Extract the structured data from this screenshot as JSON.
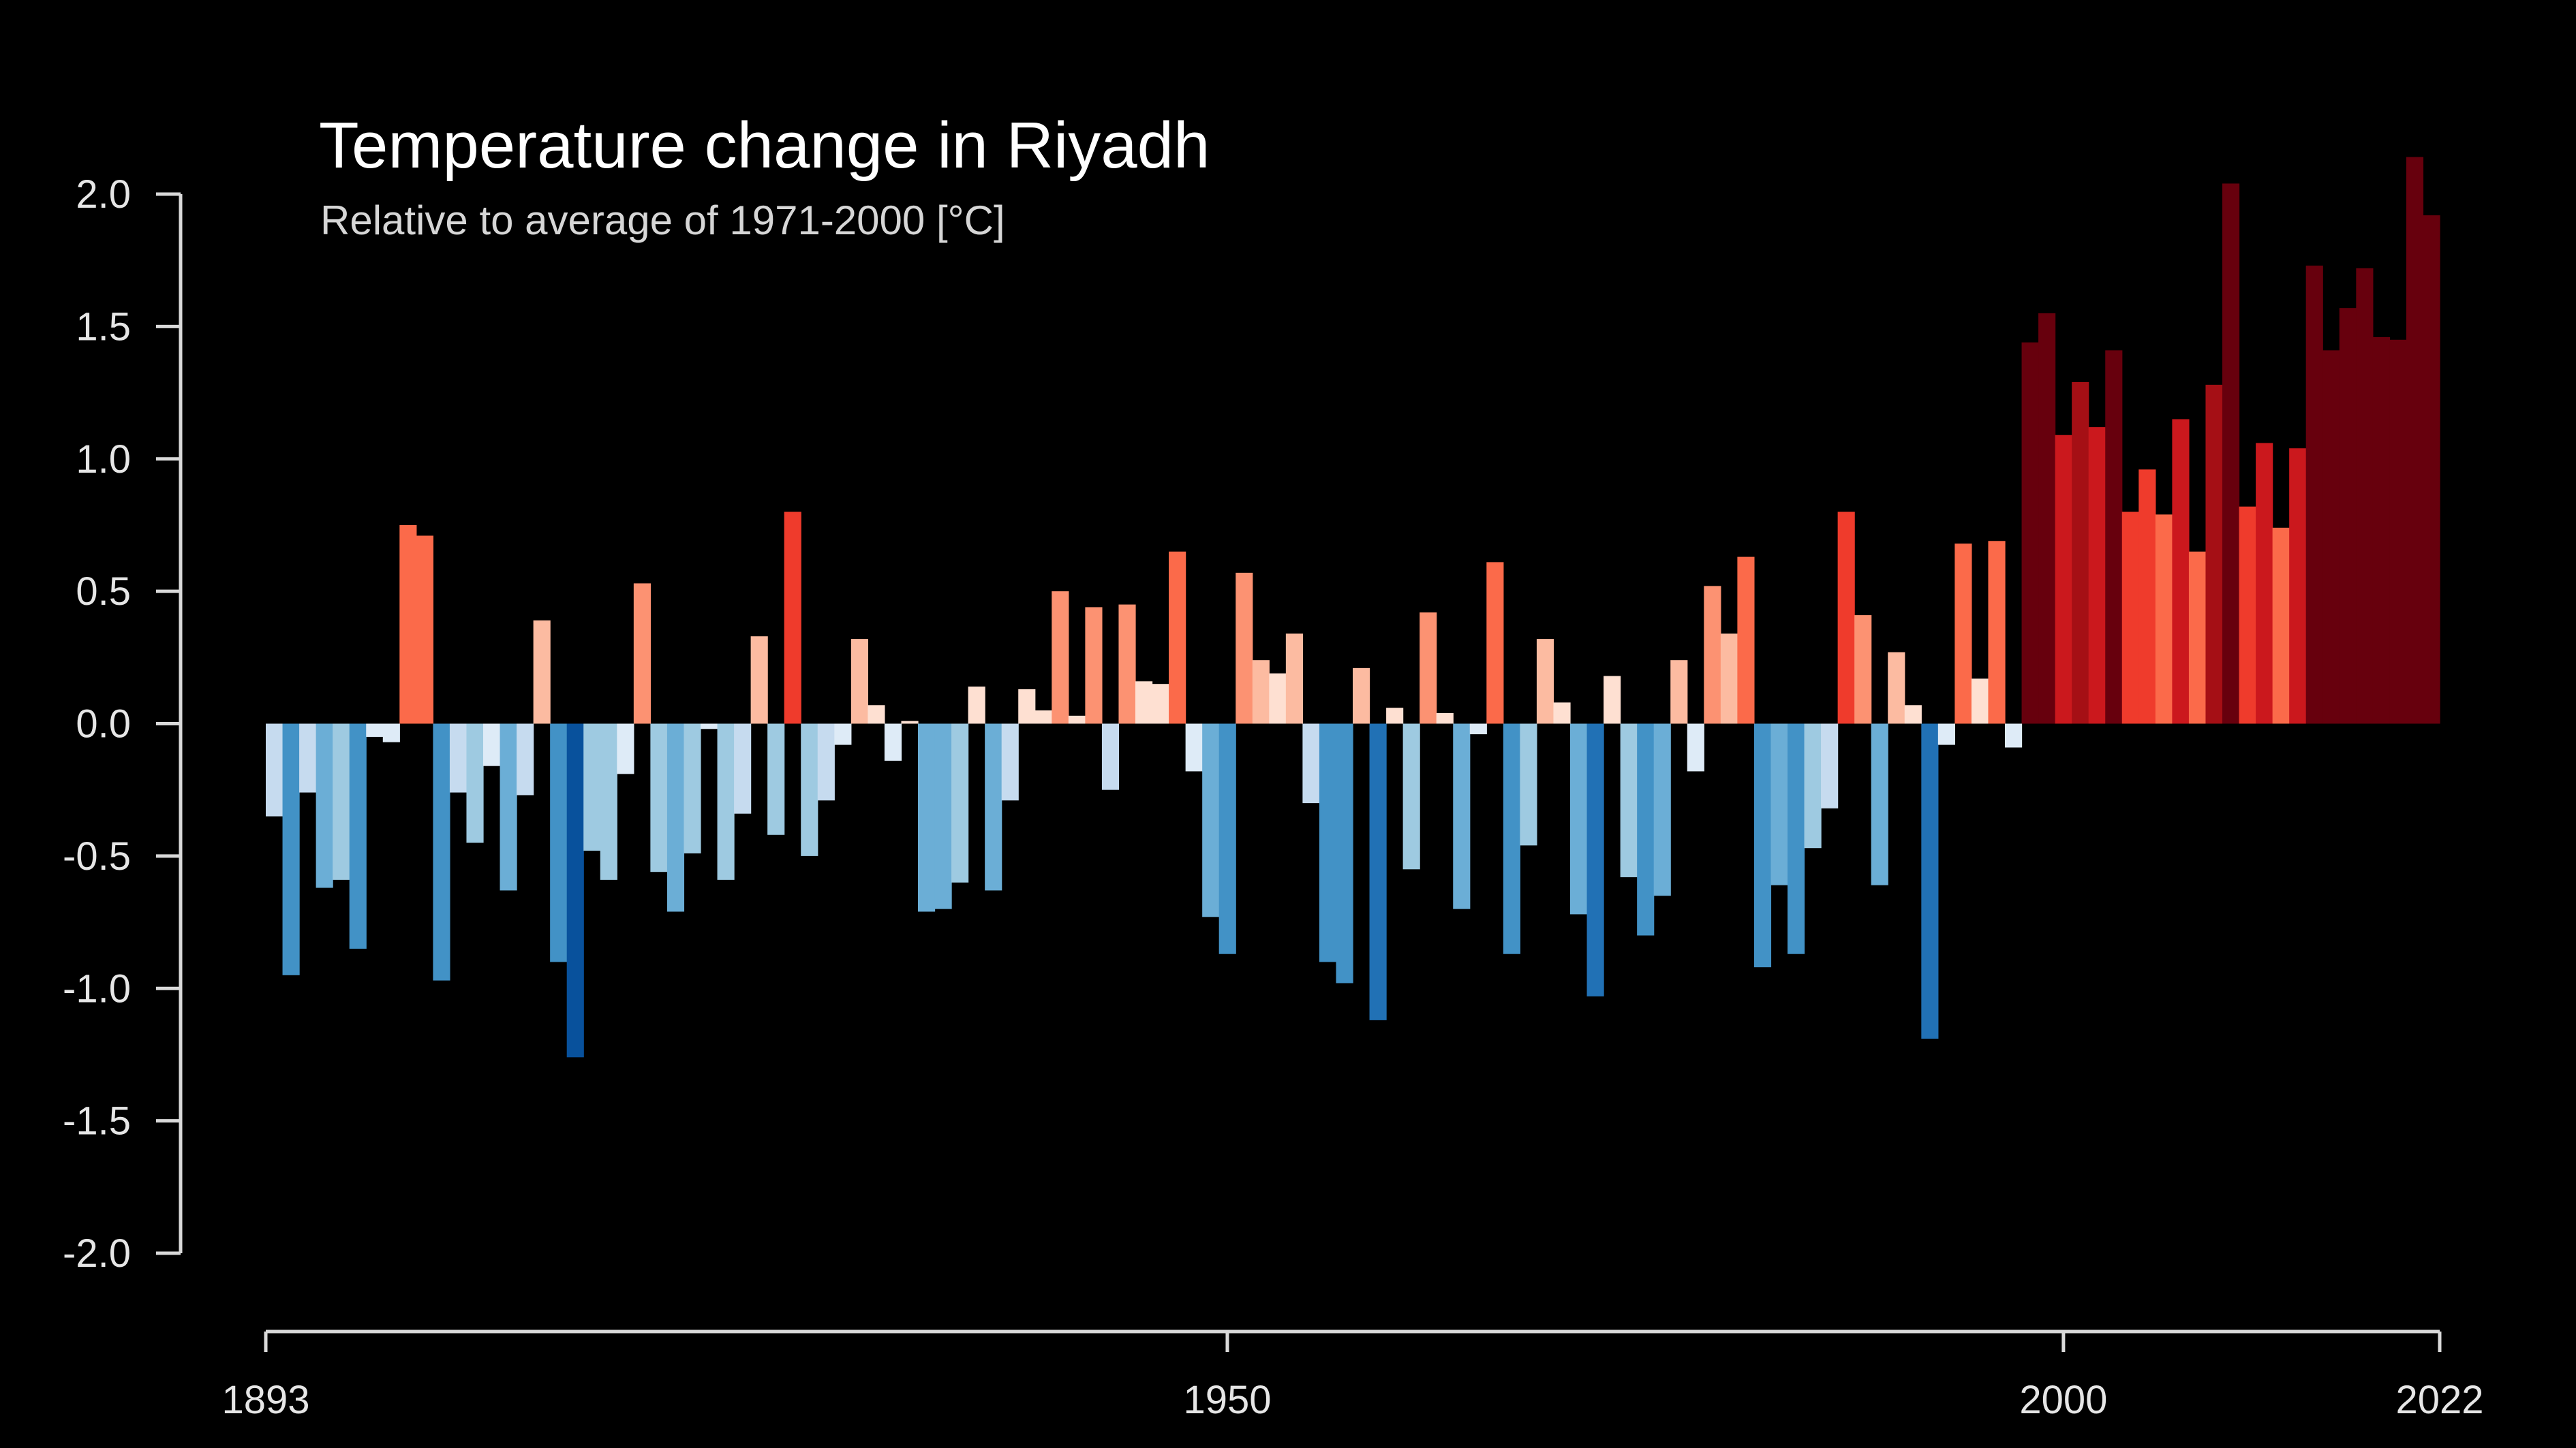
{
  "chart_data": {
    "type": "bar",
    "title": "Temperature change in Riyadh",
    "subtitle": "Relative to average of 1971-2000  [°C]",
    "xlabel": "",
    "ylabel": "",
    "ylim": [
      -2.0,
      2.0
    ],
    "yticks": [
      "2.0",
      "1.5",
      "1.0",
      "0.5",
      "0.0",
      "-0.5",
      "-1.0",
      "-1.5",
      "-2.0"
    ],
    "ytick_values": [
      2.0,
      1.5,
      1.0,
      0.5,
      0.0,
      -0.5,
      -1.0,
      -1.5,
      -2.0
    ],
    "xticks": [
      "1893",
      "1950",
      "2000",
      "2022"
    ],
    "xtick_values": [
      1893,
      1950,
      2000,
      2022
    ],
    "grid": false,
    "legend": "none",
    "x_start": 1893,
    "x_end": 2022,
    "colors": {
      "background": "#000000",
      "strong_warm": "#67000d",
      "warm": "#cb181d",
      "cold": "#08519c"
    },
    "x": [
      1893,
      1894,
      1895,
      1896,
      1897,
      1898,
      1899,
      1900,
      1901,
      1902,
      1903,
      1904,
      1905,
      1906,
      1907,
      1908,
      1909,
      1910,
      1911,
      1912,
      1913,
      1914,
      1915,
      1916,
      1917,
      1918,
      1919,
      1920,
      1921,
      1922,
      1923,
      1924,
      1925,
      1926,
      1927,
      1928,
      1929,
      1930,
      1931,
      1932,
      1933,
      1934,
      1935,
      1936,
      1937,
      1938,
      1939,
      1940,
      1941,
      1942,
      1943,
      1944,
      1945,
      1946,
      1947,
      1948,
      1949,
      1950,
      1951,
      1952,
      1953,
      1954,
      1955,
      1956,
      1957,
      1958,
      1959,
      1960,
      1961,
      1962,
      1963,
      1964,
      1965,
      1966,
      1967,
      1968,
      1969,
      1970,
      1971,
      1972,
      1973,
      1974,
      1975,
      1976,
      1977,
      1978,
      1979,
      1980,
      1981,
      1982,
      1983,
      1984,
      1985,
      1986,
      1987,
      1988,
      1989,
      1990,
      1991,
      1992,
      1993,
      1994,
      1995,
      1996,
      1997,
      1998,
      1999,
      2000,
      2001,
      2002,
      2003,
      2004,
      2005,
      2006,
      2007,
      2008,
      2009,
      2010,
      2011,
      2012,
      2013,
      2014,
      2015,
      2016,
      2017,
      2018,
      2019,
      2020,
      2021,
      2022
    ],
    "values": [
      -0.35,
      -0.95,
      -0.26,
      -0.62,
      -0.59,
      -0.85,
      -0.05,
      -0.07,
      0.75,
      0.71,
      -0.97,
      -0.26,
      -0.45,
      -0.16,
      -0.63,
      -0.27,
      0.39,
      -0.9,
      -1.26,
      -0.48,
      -0.59,
      -0.19,
      0.53,
      -0.56,
      -0.71,
      -0.49,
      -0.02,
      -0.59,
      -0.34,
      0.33,
      -0.42,
      0.8,
      -0.5,
      -0.29,
      -0.08,
      0.32,
      0.07,
      -0.14,
      0.01,
      -0.71,
      -0.7,
      -0.6,
      0.14,
      -0.63,
      -0.29,
      0.13,
      0.05,
      0.5,
      0.03,
      0.44,
      -0.25,
      0.45,
      0.16,
      0.15,
      0.65,
      -0.18,
      -0.73,
      -0.87,
      0.57,
      0.24,
      0.19,
      0.34,
      -0.3,
      -0.9,
      -0.98,
      0.21,
      -1.12,
      0.06,
      -0.55,
      0.42,
      0.04,
      -0.7,
      -0.04,
      0.61,
      -0.87,
      -0.46,
      0.32,
      0.08,
      -0.72,
      -1.03,
      0.18,
      -0.58,
      -0.8,
      -0.65,
      0.24,
      -0.18,
      0.52,
      0.34,
      0.63,
      -0.92,
      -0.61,
      -0.87,
      -0.47,
      -0.32,
      0.8,
      0.41,
      -0.61,
      0.27,
      0.07,
      -1.19,
      -0.08,
      0.68,
      0.17,
      0.69,
      -0.09,
      1.44,
      1.55,
      1.09,
      1.29,
      1.12,
      1.41,
      0.8,
      0.96,
      0.79,
      1.15,
      0.65,
      1.28,
      2.04,
      0.82,
      1.06,
      0.74,
      1.04,
      1.73,
      1.41,
      1.57,
      1.72,
      1.46,
      1.45,
      2.14,
      1.92
    ]
  }
}
